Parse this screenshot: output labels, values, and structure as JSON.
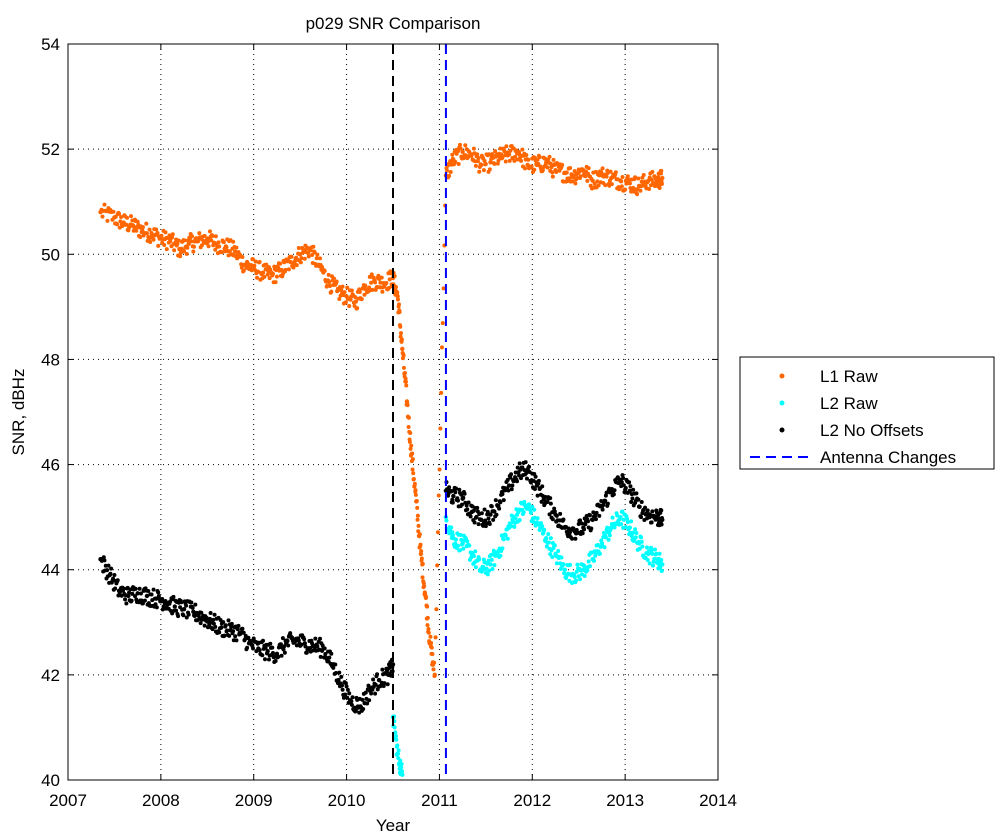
{
  "chart_data": {
    "type": "scatter",
    "title": "p029 SNR Comparison",
    "xlabel": "Year",
    "ylabel": "SNR, dBHz",
    "xlim": [
      2007,
      2014
    ],
    "ylim": [
      40,
      54
    ],
    "xticks": [
      2007,
      2008,
      2009,
      2010,
      2011,
      2012,
      2013,
      2014
    ],
    "yticks": [
      40,
      42,
      44,
      46,
      48,
      50,
      52,
      54
    ],
    "grid": true,
    "grid_style": "dotted",
    "legend_position": "outside-right",
    "series": [
      {
        "name": "L1 Raw",
        "marker": "dot",
        "color": "#ff6600",
        "x": [
          2007.35,
          2007.5,
          2007.6,
          2007.7,
          2007.8,
          2007.9,
          2008.0,
          2008.1,
          2008.2,
          2008.3,
          2008.4,
          2008.5,
          2008.6,
          2008.7,
          2008.8,
          2008.9,
          2009.0,
          2009.1,
          2009.2,
          2009.3,
          2009.4,
          2009.5,
          2009.6,
          2009.7,
          2009.8,
          2009.9,
          2010.0,
          2010.1,
          2010.2,
          2010.3,
          2010.4,
          2010.5,
          2010.55,
          2010.6,
          2010.65,
          2010.7,
          2010.75,
          2010.8,
          2010.85,
          2010.9,
          2010.95,
          2011.07,
          2011.15,
          2011.25,
          2011.35,
          2011.45,
          2011.55,
          2011.65,
          2011.75,
          2011.85,
          2011.95,
          2012.05,
          2012.15,
          2012.25,
          2012.35,
          2012.45,
          2012.55,
          2012.65,
          2012.75,
          2012.85,
          2012.95,
          2013.05,
          2013.15,
          2013.25,
          2013.35,
          2013.4
        ],
        "y": [
          50.8,
          50.7,
          50.6,
          50.55,
          50.45,
          50.4,
          50.3,
          50.25,
          50.1,
          50.2,
          50.25,
          50.3,
          50.2,
          50.15,
          50.05,
          49.8,
          49.75,
          49.65,
          49.6,
          49.7,
          49.85,
          50.0,
          50.1,
          49.8,
          49.5,
          49.3,
          49.2,
          49.1,
          49.4,
          49.5,
          49.45,
          49.55,
          49.2,
          48.2,
          47.2,
          46.2,
          45.3,
          44.3,
          43.5,
          42.6,
          42.0,
          51.5,
          51.8,
          51.95,
          51.9,
          51.7,
          51.75,
          51.85,
          51.9,
          51.95,
          51.7,
          51.7,
          51.75,
          51.6,
          51.55,
          51.5,
          51.6,
          51.4,
          51.5,
          51.45,
          51.4,
          51.35,
          51.3,
          51.4,
          51.4,
          51.45
        ]
      },
      {
        "name": "L2 Raw",
        "marker": "dot",
        "color": "#00ffff",
        "x": [
          2010.5,
          2010.55,
          2010.6,
          2011.07,
          2011.15,
          2011.25,
          2011.35,
          2011.45,
          2011.55,
          2011.65,
          2011.75,
          2011.85,
          2011.95,
          2012.05,
          2012.15,
          2012.25,
          2012.35,
          2012.45,
          2012.55,
          2012.65,
          2012.75,
          2012.85,
          2012.95,
          2013.05,
          2013.15,
          2013.25,
          2013.35,
          2013.4
        ],
        "y": [
          41.2,
          40.5,
          40.1,
          45.0,
          44.6,
          44.5,
          44.3,
          44.0,
          44.1,
          44.4,
          44.8,
          45.1,
          45.2,
          44.9,
          44.6,
          44.3,
          44.0,
          43.9,
          44.0,
          44.2,
          44.5,
          44.8,
          45.0,
          44.8,
          44.5,
          44.3,
          44.2,
          44.1
        ]
      },
      {
        "name": "L2 No Offsets",
        "marker": "dot",
        "color": "#000000",
        "x": [
          2007.35,
          2007.45,
          2007.55,
          2007.65,
          2007.75,
          2007.85,
          2007.95,
          2008.05,
          2008.15,
          2008.25,
          2008.35,
          2008.45,
          2008.55,
          2008.65,
          2008.75,
          2008.85,
          2008.95,
          2009.05,
          2009.15,
          2009.25,
          2009.35,
          2009.45,
          2009.55,
          2009.65,
          2009.75,
          2009.85,
          2009.95,
          2010.05,
          2010.15,
          2010.25,
          2010.35,
          2010.45,
          2010.5,
          2011.07,
          2011.15,
          2011.25,
          2011.35,
          2011.45,
          2011.55,
          2011.65,
          2011.75,
          2011.85,
          2011.95,
          2012.05,
          2012.15,
          2012.25,
          2012.35,
          2012.45,
          2012.55,
          2012.65,
          2012.75,
          2012.85,
          2012.95,
          2013.05,
          2013.15,
          2013.25,
          2013.35,
          2013.4
        ],
        "y": [
          44.2,
          43.9,
          43.6,
          43.5,
          43.55,
          43.5,
          43.45,
          43.4,
          43.3,
          43.25,
          43.2,
          43.1,
          43.0,
          42.9,
          42.85,
          42.8,
          42.6,
          42.5,
          42.45,
          42.4,
          42.6,
          42.65,
          42.6,
          42.55,
          42.5,
          42.2,
          41.8,
          41.5,
          41.4,
          41.7,
          41.9,
          42.0,
          42.2,
          45.5,
          45.4,
          45.35,
          45.1,
          44.95,
          45.05,
          45.3,
          45.6,
          45.85,
          45.9,
          45.6,
          45.3,
          45.05,
          44.8,
          44.75,
          44.8,
          44.95,
          45.2,
          45.5,
          45.7,
          45.5,
          45.2,
          45.05,
          45.0,
          44.95
        ]
      }
    ],
    "vlines": [
      {
        "name": "Antenna Changes",
        "x": 2011.07,
        "color": "#0000ff",
        "style": "dashed",
        "in_legend": true
      },
      {
        "name": "",
        "x": 2010.5,
        "color": "#000000",
        "style": "dashed",
        "in_legend": false
      }
    ]
  }
}
